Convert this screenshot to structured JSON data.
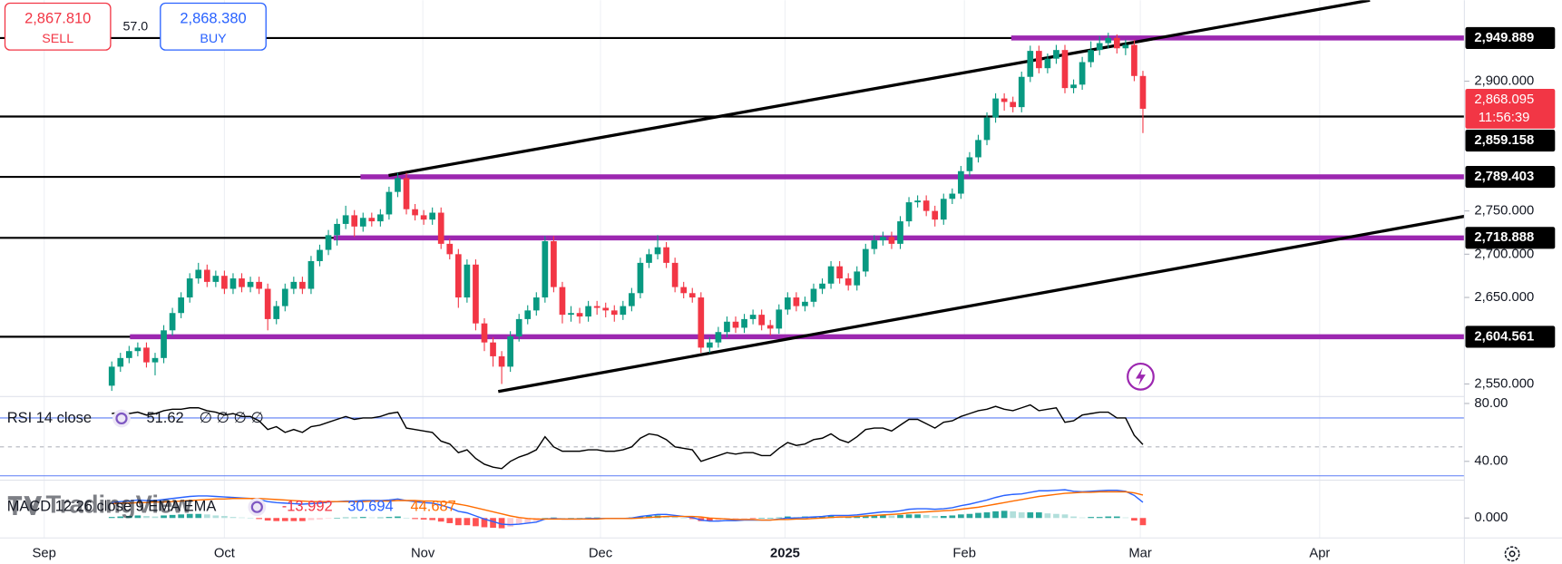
{
  "trade_panel": {
    "sell": {
      "price": "2,867.810",
      "label": "SELL"
    },
    "spread": "57.0",
    "buy": {
      "price": "2,868.380",
      "label": "BUY"
    }
  },
  "watermark": "TradingView",
  "chart_data": [
    {
      "type": "candlestick",
      "up_color": "#089981",
      "down_color": "#f23645",
      "xlim": [
        -12.9,
        156.1
      ],
      "xticks": [
        {
          "value": -7.8,
          "label": "Sep"
        },
        {
          "value": 13,
          "label": "Oct"
        },
        {
          "value": 35.9,
          "label": "Nov"
        },
        {
          "value": 56.4,
          "label": "Dec"
        },
        {
          "value": 77.7,
          "label": "2025"
        },
        {
          "value": 98.4,
          "label": "Feb"
        },
        {
          "value": 118.7,
          "label": "Mar"
        },
        {
          "value": 139.4,
          "label": "Apr"
        }
      ],
      "ylim": [
        2535.5,
        2993.6
      ],
      "yticks": [
        {
          "value": 2550,
          "label": "2,550.000"
        },
        {
          "value": 2650,
          "label": "2,650.000"
        },
        {
          "value": 2700,
          "label": "2,700.000"
        },
        {
          "value": 2750,
          "label": "2,750.000"
        },
        {
          "value": 2900,
          "label": "2,900.000"
        }
      ],
      "open": [
        2548,
        2570,
        2580,
        2588,
        2592,
        2575,
        2580,
        2612,
        2632,
        2650,
        2672,
        2682,
        2668,
        2675,
        2660,
        2672,
        2662,
        2668,
        2660,
        2625,
        2640,
        2660,
        2668,
        2660,
        2692,
        2705,
        2722,
        2735,
        2745,
        2732,
        2742,
        2738,
        2746,
        2772,
        2788,
        2752,
        2745,
        2740,
        2748,
        2712,
        2700,
        2650,
        2688,
        2620,
        2598,
        2582,
        2570,
        2605,
        2625,
        2635,
        2650,
        2715,
        2662,
        2630,
        2632,
        2628,
        2640,
        2638,
        2635,
        2630,
        2640,
        2655,
        2690,
        2700,
        2708,
        2690,
        2662,
        2655,
        2650,
        2592,
        2598,
        2610,
        2622,
        2615,
        2625,
        2630,
        2618,
        2614,
        2636,
        2650,
        2640,
        2645,
        2660,
        2666,
        2686,
        2672,
        2664,
        2680,
        2706,
        2716,
        2720,
        2712,
        2738,
        2760,
        2762,
        2750,
        2740,
        2764,
        2770,
        2796,
        2812,
        2832,
        2858,
        2880,
        2876,
        2870,
        2905,
        2935,
        2915,
        2926,
        2936,
        2892,
        2896,
        2922,
        2936,
        2944,
        2950,
        2938,
        2942,
        2906
      ],
      "high": [
        2576,
        2586,
        2594,
        2598,
        2598,
        2586,
        2618,
        2638,
        2656,
        2678,
        2690,
        2688,
        2681,
        2681,
        2678,
        2678,
        2674,
        2674,
        2666,
        2646,
        2666,
        2674,
        2674,
        2698,
        2711,
        2728,
        2741,
        2756,
        2751,
        2748,
        2748,
        2752,
        2778,
        2794,
        2794,
        2758,
        2751,
        2754,
        2754,
        2718,
        2706,
        2694,
        2694,
        2626,
        2604,
        2588,
        2611,
        2631,
        2641,
        2656,
        2721,
        2721,
        2668,
        2640,
        2638,
        2646,
        2646,
        2644,
        2641,
        2646,
        2661,
        2696,
        2706,
        2722,
        2714,
        2696,
        2668,
        2661,
        2656,
        2604,
        2616,
        2628,
        2628,
        2631,
        2636,
        2636,
        2624,
        2642,
        2656,
        2656,
        2651,
        2666,
        2672,
        2692,
        2692,
        2678,
        2686,
        2712,
        2722,
        2726,
        2726,
        2744,
        2766,
        2768,
        2768,
        2756,
        2770,
        2776,
        2802,
        2818,
        2838,
        2864,
        2886,
        2886,
        2882,
        2911,
        2941,
        2941,
        2932,
        2942,
        2942,
        2902,
        2928,
        2946,
        2952,
        2956,
        2954,
        2948,
        2948,
        2912
      ],
      "low": [
        2542,
        2564,
        2574,
        2582,
        2569,
        2560,
        2574,
        2606,
        2626,
        2644,
        2666,
        2662,
        2662,
        2654,
        2654,
        2656,
        2656,
        2654,
        2612,
        2619,
        2634,
        2654,
        2654,
        2654,
        2686,
        2699,
        2710,
        2729,
        2720,
        2726,
        2732,
        2732,
        2740,
        2766,
        2746,
        2739,
        2734,
        2734,
        2706,
        2694,
        2638,
        2644,
        2612,
        2588,
        2570,
        2550,
        2564,
        2599,
        2619,
        2629,
        2644,
        2656,
        2620,
        2622,
        2620,
        2622,
        2630,
        2627,
        2622,
        2624,
        2634,
        2649,
        2684,
        2694,
        2684,
        2656,
        2649,
        2644,
        2586,
        2586,
        2592,
        2604,
        2609,
        2609,
        2619,
        2612,
        2606,
        2608,
        2630,
        2634,
        2634,
        2639,
        2654,
        2660,
        2666,
        2658,
        2658,
        2674,
        2700,
        2710,
        2706,
        2706,
        2732,
        2754,
        2744,
        2732,
        2734,
        2758,
        2764,
        2790,
        2806,
        2826,
        2852,
        2866,
        2864,
        2864,
        2899,
        2909,
        2909,
        2920,
        2886,
        2886,
        2890,
        2916,
        2930,
        2938,
        2932,
        2930,
        2900,
        2840
      ],
      "close": [
        2570,
        2580,
        2588,
        2592,
        2575,
        2580,
        2612,
        2632,
        2650,
        2672,
        2682,
        2668,
        2675,
        2660,
        2672,
        2662,
        2668,
        2660,
        2625,
        2640,
        2660,
        2668,
        2660,
        2692,
        2705,
        2722,
        2735,
        2745,
        2732,
        2742,
        2738,
        2746,
        2772,
        2788,
        2752,
        2745,
        2740,
        2748,
        2712,
        2700,
        2650,
        2688,
        2620,
        2598,
        2582,
        2570,
        2605,
        2625,
        2635,
        2650,
        2715,
        2662,
        2630,
        2632,
        2628,
        2640,
        2638,
        2635,
        2630,
        2640,
        2655,
        2690,
        2700,
        2708,
        2690,
        2662,
        2655,
        2650,
        2592,
        2598,
        2610,
        2622,
        2615,
        2625,
        2630,
        2618,
        2614,
        2636,
        2650,
        2640,
        2645,
        2660,
        2666,
        2686,
        2672,
        2664,
        2680,
        2706,
        2716,
        2720,
        2712,
        2738,
        2760,
        2762,
        2750,
        2740,
        2764,
        2770,
        2796,
        2812,
        2832,
        2858,
        2880,
        2876,
        2870,
        2905,
        2935,
        2915,
        2926,
        2936,
        2892,
        2896,
        2922,
        2936,
        2944,
        2950,
        2938,
        2942,
        2906,
        2868.095
      ],
      "current_price": {
        "value": 2868.095,
        "label": "2,868.095",
        "countdown": "11:56:39",
        "color": "#f23645"
      },
      "levels": [
        {
          "value": 2949.889,
          "label": "2,949.889",
          "ray_start": 103.8
        },
        {
          "value": 2859.158,
          "label": "2,859.158"
        },
        {
          "value": 2789.403,
          "label": "2,789.403",
          "ray_start": 28.7
        },
        {
          "value": 2718.888,
          "label": "2,718.888",
          "ray_start": 25.6
        },
        {
          "value": 2604.561,
          "label": "2,604.561",
          "ray_start": 2.1
        }
      ],
      "level_color": "#000000",
      "ray_color": "#9c27b0",
      "trendlines": [
        {
          "x": [
            31.95,
            145.2
          ],
          "y": [
            2791.0,
            2993.6
          ]
        },
        {
          "x": [
            44.6,
            156.1
          ],
          "y": [
            2541.3,
            2743.8
          ]
        }
      ]
    },
    {
      "type": "line",
      "title": "RSI 14 close",
      "legend_extra": "∅ ∅ ∅ ∅",
      "ylim": [
        27,
        84.8
      ],
      "yticks": [
        {
          "value": 80,
          "label": "80.00"
        },
        {
          "value": 40,
          "label": "40.00"
        }
      ],
      "bands": [
        70,
        30
      ],
      "band_color": "#5b7cf5",
      "midline": 50,
      "series": [
        {
          "color": "#000000",
          "values": [
            73,
            74,
            73,
            74,
            72,
            73,
            75,
            76,
            76,
            77,
            77,
            75,
            74,
            72,
            73,
            71,
            71,
            68,
            62,
            64,
            60,
            62,
            60,
            64,
            65,
            67,
            69,
            71,
            69,
            70,
            70,
            71,
            73,
            74,
            63,
            62,
            61,
            60,
            54,
            52,
            46,
            48,
            42,
            38,
            36,
            35,
            40,
            43,
            45,
            48,
            57,
            50,
            47,
            47,
            47,
            48,
            48,
            47,
            47,
            48,
            50,
            56,
            59,
            58,
            55,
            50,
            49,
            48,
            40,
            42,
            44,
            46,
            45,
            46,
            46,
            44,
            44,
            49,
            53,
            51,
            52,
            55,
            56,
            59,
            55,
            53,
            57,
            62,
            63,
            63,
            61,
            65,
            69,
            69,
            66,
            63,
            67,
            68,
            71,
            73,
            75,
            76,
            78,
            76,
            75,
            77,
            79,
            75,
            76,
            77,
            67,
            68,
            72,
            73,
            74,
            74,
            70,
            70,
            58,
            51.62
          ]
        }
      ]
    },
    {
      "type": "macd",
      "title": "MACD 12 26 close 9 EMA EMA",
      "ylim": [
        -38.8,
        73.7
      ],
      "yticks": [
        {
          "value": 0,
          "label": "0.000"
        }
      ],
      "series": [
        {
          "style": "histogram",
          "color": "#f23645",
          "colors": {
            "grow_above": "#26a69a",
            "fall_above": "#b2dfdb",
            "grow_below": "#ffcdd2",
            "fall_below": "#ff5252"
          },
          "values": [
            2,
            3,
            4,
            5,
            4,
            3,
            5,
            6,
            7,
            8,
            8,
            7,
            5,
            4,
            2,
            1,
            0,
            -2,
            -5,
            -6,
            -6,
            -6,
            -6,
            -4,
            -3,
            -1,
            0,
            1,
            1,
            2,
            1,
            1,
            2,
            3,
            0,
            -2,
            -3,
            -4,
            -7,
            -10,
            -14,
            -14,
            -16,
            -18,
            -19,
            -20,
            -17,
            -13,
            -9,
            -6,
            0,
            1,
            0,
            0,
            0,
            1,
            1,
            0,
            0,
            0,
            1,
            3,
            4,
            5,
            4,
            2,
            0,
            -2,
            -6,
            -6,
            -5,
            -3,
            -2,
            -1,
            -1,
            0,
            0,
            1,
            3,
            2,
            3,
            3,
            3,
            4,
            3,
            3,
            3,
            4,
            5,
            6,
            5,
            6,
            7,
            7,
            6,
            4,
            4,
            5,
            7,
            8,
            10,
            11,
            13,
            14,
            13,
            11,
            11,
            11,
            9,
            8,
            7,
            3,
            1,
            2,
            2,
            3,
            3,
            1,
            -5,
            -13.992
          ]
        },
        {
          "style": "line",
          "color": "#2962ff",
          "values": [
            30,
            32,
            33,
            35,
            34,
            34,
            36,
            38,
            40,
            42,
            43,
            43,
            42,
            41,
            40,
            39,
            38,
            36,
            32,
            30,
            29,
            28,
            27,
            28,
            29,
            31,
            32,
            33,
            33,
            34,
            34,
            34,
            35,
            37,
            34,
            32,
            30,
            29,
            25,
            20,
            13,
            10,
            4,
            -2,
            -7,
            -12,
            -13,
            -12,
            -10,
            -8,
            -2,
            -1,
            -2,
            -2,
            -2,
            -1,
            -1,
            -1,
            -1,
            -1,
            0,
            3,
            5,
            7,
            7,
            5,
            3,
            1,
            -4,
            -6,
            -6,
            -5,
            -5,
            -4,
            -4,
            -4,
            -4,
            -2,
            0,
            0,
            1,
            2,
            3,
            5,
            5,
            5,
            6,
            8,
            10,
            12,
            12,
            14,
            17,
            18,
            18,
            17,
            18,
            20,
            24,
            27,
            31,
            35,
            40,
            44,
            46,
            47,
            50,
            53,
            53,
            54,
            55,
            52,
            51,
            52,
            53,
            54,
            54,
            52,
            44,
            30.694
          ]
        },
        {
          "style": "line",
          "color": "#ff6d00",
          "values": [
            28,
            29,
            29,
            30,
            30,
            31,
            31,
            32,
            33,
            34,
            35,
            36,
            37,
            37,
            38,
            38,
            38,
            38,
            37,
            36,
            35,
            34,
            33,
            32,
            32,
            32,
            32,
            32,
            32,
            32,
            33,
            33,
            33,
            34,
            34,
            34,
            33,
            33,
            32,
            30,
            27,
            24,
            20,
            16,
            12,
            8,
            4,
            1,
            -1,
            -2,
            -2,
            -2,
            -2,
            -2,
            -2,
            -2,
            -2,
            -1,
            -1,
            -1,
            -1,
            0,
            1,
            2,
            3,
            3,
            3,
            3,
            2,
            0,
            -1,
            -2,
            -3,
            -3,
            -3,
            -4,
            -4,
            -3,
            -3,
            -2,
            -2,
            -1,
            0,
            1,
            2,
            2,
            3,
            4,
            5,
            6,
            7,
            8,
            10,
            11,
            12,
            13,
            14,
            15,
            17,
            19,
            21,
            24,
            27,
            30,
            33,
            36,
            39,
            42,
            44,
            46,
            48,
            49,
            50,
            50,
            51,
            51,
            51,
            51,
            49,
            44.687
          ]
        }
      ]
    }
  ]
}
